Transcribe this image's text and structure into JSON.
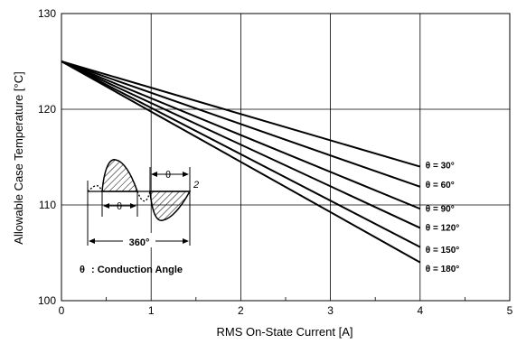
{
  "chart_data": {
    "type": "line",
    "title": "",
    "xlabel": "RMS On-State Current [A]",
    "ylabel": "Allowable Case Temperature [°C]",
    "xlim": [
      0,
      5
    ],
    "ylim": [
      100,
      130
    ],
    "xticks": [
      "0",
      "1",
      "2",
      "3",
      "4",
      "5"
    ],
    "yticks": [
      "100",
      "110",
      "120",
      "130"
    ],
    "grid": true,
    "series": [
      {
        "name": "θ  = 30°",
        "x": [
          0,
          4
        ],
        "y": [
          125,
          114.0
        ]
      },
      {
        "name": "θ  = 60°",
        "x": [
          0,
          4
        ],
        "y": [
          125,
          111.9
        ]
      },
      {
        "name": "θ  = 90°",
        "x": [
          0,
          4
        ],
        "y": [
          125,
          109.6
        ]
      },
      {
        "name": "θ  = 120°",
        "x": [
          0,
          4
        ],
        "y": [
          125,
          107.6
        ]
      },
      {
        "name": "θ  = 150°",
        "x": [
          0,
          4
        ],
        "y": [
          125,
          105.6
        ]
      },
      {
        "name": "θ  = 180°",
        "x": [
          0,
          4
        ],
        "y": [
          125,
          104.0
        ]
      }
    ],
    "curve_label_y": [
      113.8,
      111.8,
      109.3,
      107.3,
      105.0,
      103.0
    ],
    "inset": {
      "angle_label": "360°",
      "theta_mark_1": "θ",
      "theta_mark_2": "θ",
      "half_label": "2",
      "caption_theta": "θ",
      "caption": ": Conduction Angle"
    }
  }
}
